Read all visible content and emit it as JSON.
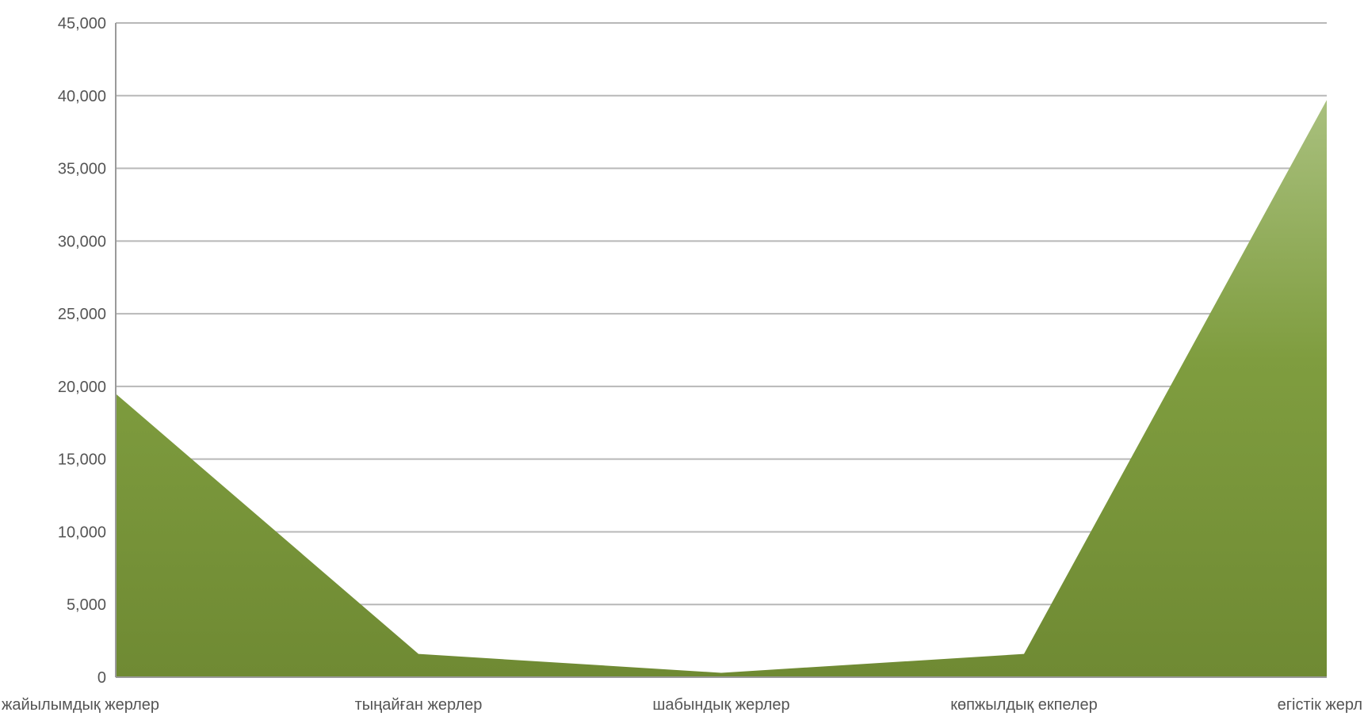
{
  "chart_data": {
    "type": "area",
    "categories": [
      "жайылымдық жерлер",
      "тыңайған жерлер",
      "шабындық жерлер",
      "көпжылдық екпелер",
      "егістік жерл"
    ],
    "series": [
      {
        "values": [
          19500,
          1600,
          300,
          1600,
          39700
        ]
      }
    ],
    "ylim": [
      0,
      45000
    ],
    "y_ticks": [
      0,
      5000,
      10000,
      15000,
      20000,
      25000,
      30000,
      35000,
      40000,
      45000
    ],
    "y_tick_labels": [
      "0",
      "5,000",
      "10,000",
      "15,000",
      "20,000",
      "25,000",
      "30,000",
      "35,000",
      "40,000",
      "45,000"
    ],
    "grid": true,
    "legend": "none",
    "colors": {
      "fill_top": "#a9c07e",
      "fill_main": "#7f9d3f",
      "fill_bottom": "#6f8a33",
      "grid": "#b8b8b8"
    }
  }
}
